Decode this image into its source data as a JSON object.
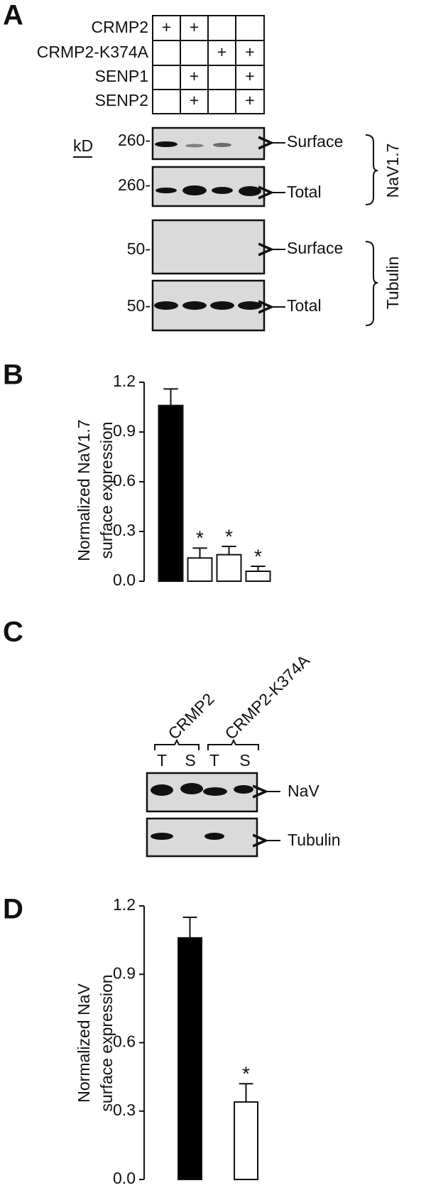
{
  "panel_labels": [
    "A",
    "B",
    "C",
    "D"
  ],
  "panel_a": {
    "rows": [
      {
        "label": "CRMP2",
        "marks": [
          "+",
          "+",
          null,
          null
        ]
      },
      {
        "label": "CRMP2-K374A",
        "marks": [
          null,
          null,
          "+",
          "+"
        ]
      },
      {
        "label": "SENP1",
        "marks": [
          null,
          "+",
          null,
          "+"
        ]
      },
      {
        "label": "SENP2",
        "marks": [
          null,
          "+",
          null,
          "+"
        ]
      }
    ],
    "kd_unit": "kD",
    "blots": [
      {
        "marker": "260-",
        "label": "Surface"
      },
      {
        "marker": "260-",
        "label": "Total"
      },
      {
        "marker": "50-",
        "label": "Surface"
      },
      {
        "marker": "50-",
        "label": "Total"
      }
    ],
    "groups": [
      "NaV1.7",
      "Tubulin"
    ]
  },
  "panel_c": {
    "groups": [
      "CRMP2",
      "CRMP2-K374A"
    ],
    "lanes": [
      "T",
      "S",
      "T",
      "S"
    ],
    "blots": [
      "NaV",
      "Tubulin"
    ]
  },
  "chart_data": [
    {
      "type": "bar",
      "ylabel": [
        "Normalized NaV1.7",
        "surface expression"
      ],
      "categories": [
        null,
        null,
        null,
        null
      ],
      "values": [
        1.06,
        0.14,
        0.16,
        0.06
      ],
      "errors": [
        0.1,
        0.06,
        0.05,
        0.03
      ],
      "colors": [
        "#000000",
        "#ffffff",
        "#ffffff",
        "#ffffff"
      ],
      "annotations": [
        null,
        "*",
        "*",
        "*"
      ],
      "ylim": [
        0,
        1.2
      ],
      "yticks": [
        {
          "value": 0,
          "label": "0.0"
        },
        0.3,
        0.6,
        0.9,
        1.2
      ]
    },
    {
      "type": "bar",
      "ylabel": [
        "Normalized NaV",
        "surface expression"
      ],
      "categories": [
        null,
        null
      ],
      "values": [
        1.06,
        0.34
      ],
      "errors": [
        0.09,
        0.08
      ],
      "colors": [
        "#000000",
        "#ffffff"
      ],
      "annotations": [
        null,
        "*"
      ],
      "ylim": [
        0,
        1.2
      ],
      "yticks": [
        {
          "value": 0,
          "label": "0.0"
        },
        0.3,
        0.6,
        0.9,
        1.2
      ]
    }
  ]
}
